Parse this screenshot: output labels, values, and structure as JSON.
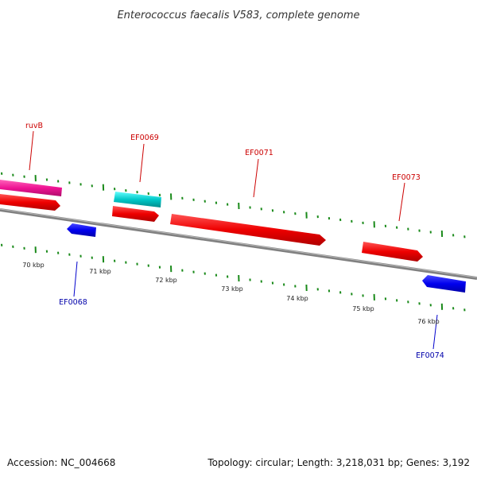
{
  "header": {
    "title": "Enterococcus faecalis V583, complete genome"
  },
  "footer": {
    "accession": "Accession: NC_004668",
    "summary": "Topology: circular; Length: 3,218,031 bp; Genes: 3,192"
  },
  "colors": {
    "forward_gene": "#ee0000",
    "reverse_gene": "#0000ee",
    "rna_gene": "#00c8c8",
    "other_gene": "#ee1493",
    "backbone": "#808080",
    "gc_ticks": "#1a8a1a"
  },
  "gene_labels": [
    {
      "text": "ruvB",
      "strand": "forward"
    },
    {
      "text": "EF0069",
      "strand": "forward"
    },
    {
      "text": "EF0071",
      "strand": "forward"
    },
    {
      "text": "EF0073",
      "strand": "forward"
    },
    {
      "text": "EF0068",
      "strand": "reverse"
    },
    {
      "text": "EF0074",
      "strand": "reverse"
    }
  ],
  "scale_labels": [
    "70 kbp",
    "71 kbp",
    "72 kbp",
    "73 kbp",
    "74 kbp",
    "75 kbp",
    "76 kbp"
  ]
}
